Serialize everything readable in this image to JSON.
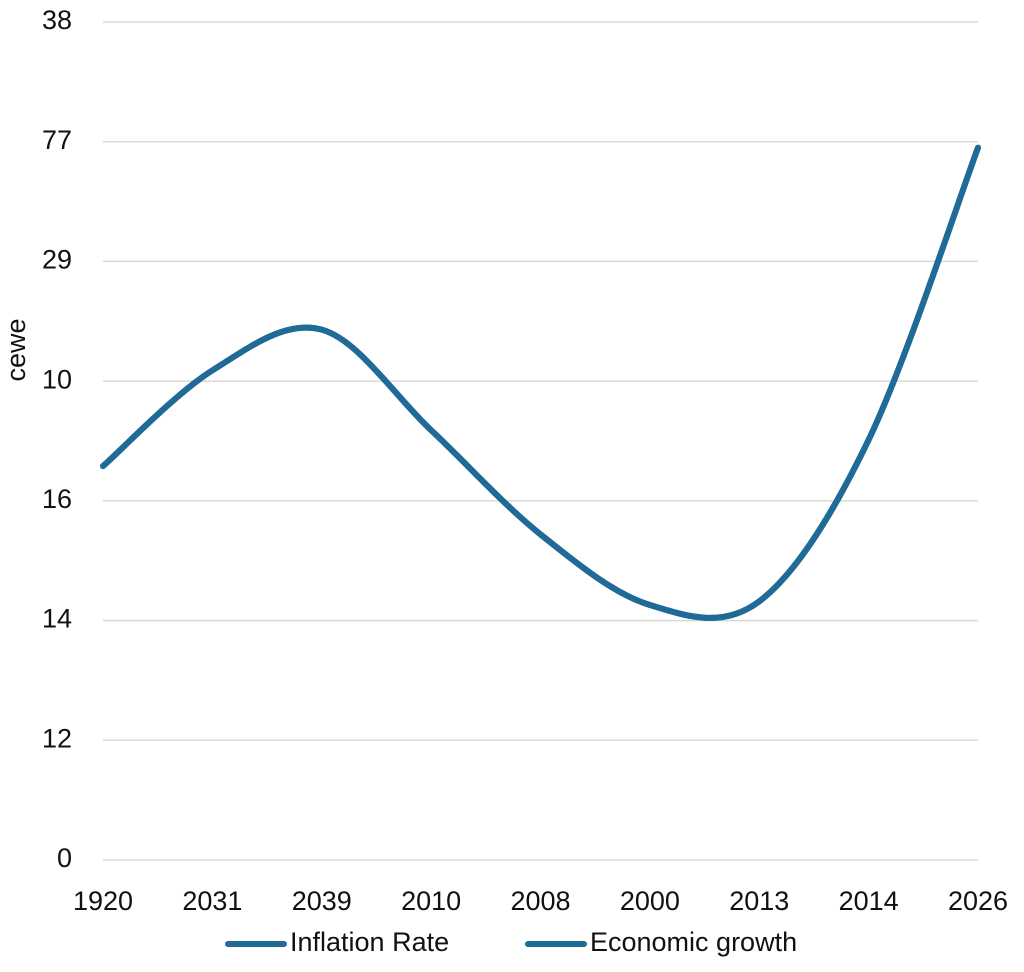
{
  "chart_data": {
    "type": "line",
    "ylabel": "cewe",
    "categories": [
      "1920",
      "2031",
      "2039",
      "2010",
      "2008",
      "2000",
      "2013",
      "2014",
      "2026"
    ],
    "series": [
      {
        "name": "Inflation Rate",
        "color": "#1f6a96",
        "values": [
          3.29,
          4.09,
          4.43,
          3.59,
          2.72,
          2.13,
          2.16,
          3.51,
          5.95
        ]
      },
      {
        "name": "Economic growth",
        "color": "#1f6a96",
        "values": [
          3.29,
          4.09,
          4.43,
          3.59,
          2.72,
          2.13,
          2.16,
          3.51,
          5.95
        ]
      }
    ],
    "ylim": [
      0,
      7
    ],
    "yticks": [
      {
        "value": 0,
        "label": "0"
      },
      {
        "value": 1,
        "label": "12"
      },
      {
        "value": 2,
        "label": "14"
      },
      {
        "value": 3,
        "label": "16"
      },
      {
        "value": 4,
        "label": "10"
      },
      {
        "value": 5,
        "label": "29"
      },
      {
        "value": 6,
        "label": "77"
      },
      {
        "value": 7,
        "label": "38"
      }
    ],
    "grid": true,
    "legend": "bottom"
  }
}
